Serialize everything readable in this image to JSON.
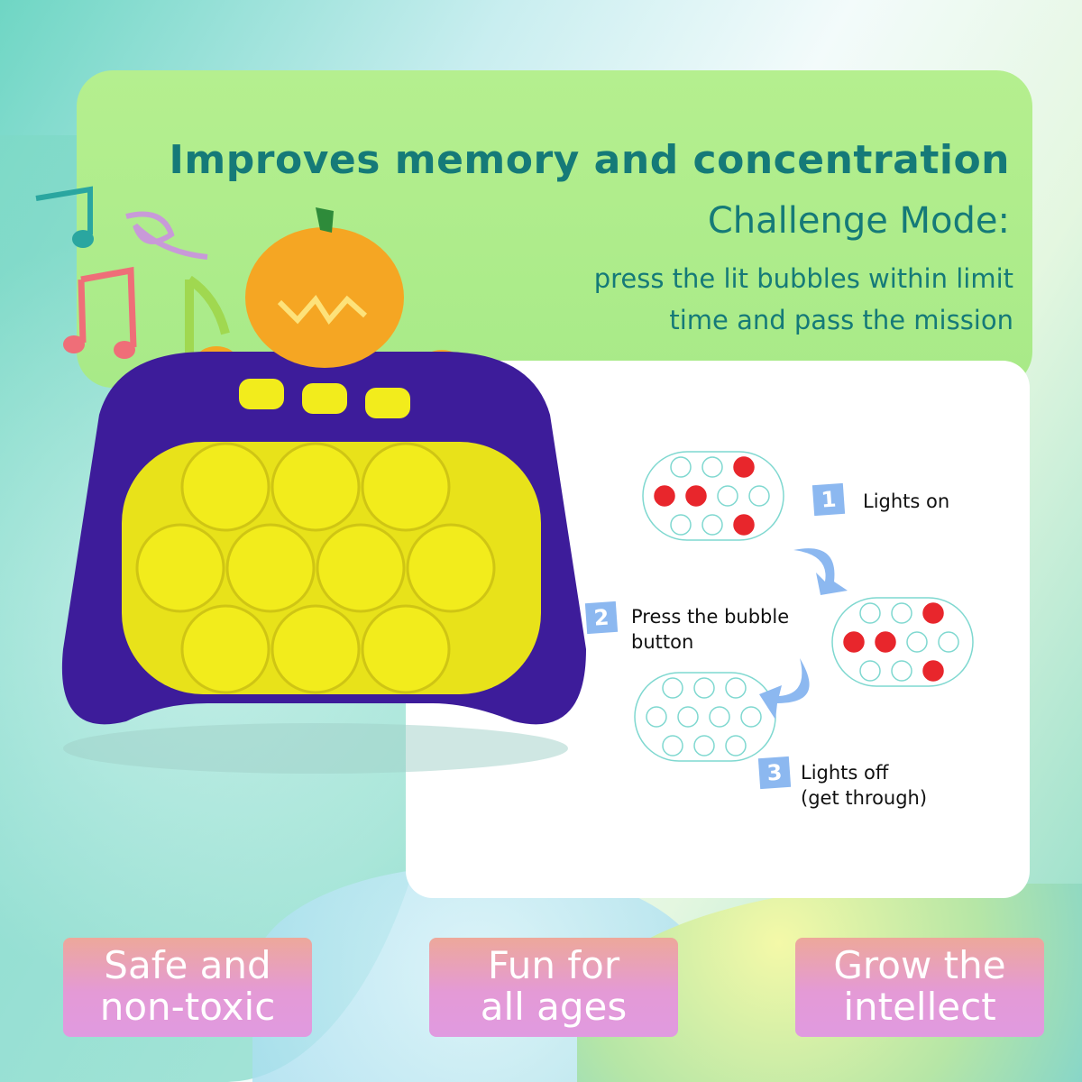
{
  "headline": "Improves memory and concentration",
  "mode_title": "Challenge Mode:",
  "mode_desc": [
    "press the lit bubbles within limit",
    "time and pass the mission"
  ],
  "steps": [
    {
      "number": "1",
      "label": [
        "Lights on"
      ]
    },
    {
      "number": "2",
      "label": [
        "Press the bubble",
        "button"
      ]
    },
    {
      "number": "3",
      "label": [
        "Lights off",
        "(get through)"
      ]
    }
  ],
  "diagrams": [
    {
      "lit": [
        false,
        false,
        true,
        true,
        true,
        false,
        false,
        false,
        false,
        true
      ]
    },
    {
      "lit": [
        false,
        false,
        true,
        true,
        true,
        false,
        false,
        false,
        false,
        true
      ]
    },
    {
      "lit": [
        false,
        false,
        false,
        false,
        false,
        false,
        false,
        false,
        false,
        false
      ]
    }
  ],
  "features": [
    "Safe and\nnon-toxic",
    "Fun for\nall ages",
    "Grow the\nintellect"
  ],
  "colors": {
    "accent_text": "#157a78",
    "lit_bubble": "#e8262c",
    "bubble_outline": "#7fd8d0",
    "device_body": "#3d1c9a",
    "bubbles": "#f2ec1c",
    "pumpkin": "#f5a623"
  },
  "icons": [
    "music-note-icon",
    "menu-icon",
    "power-icon",
    "sound-icon",
    "curved-arrow-icon"
  ]
}
